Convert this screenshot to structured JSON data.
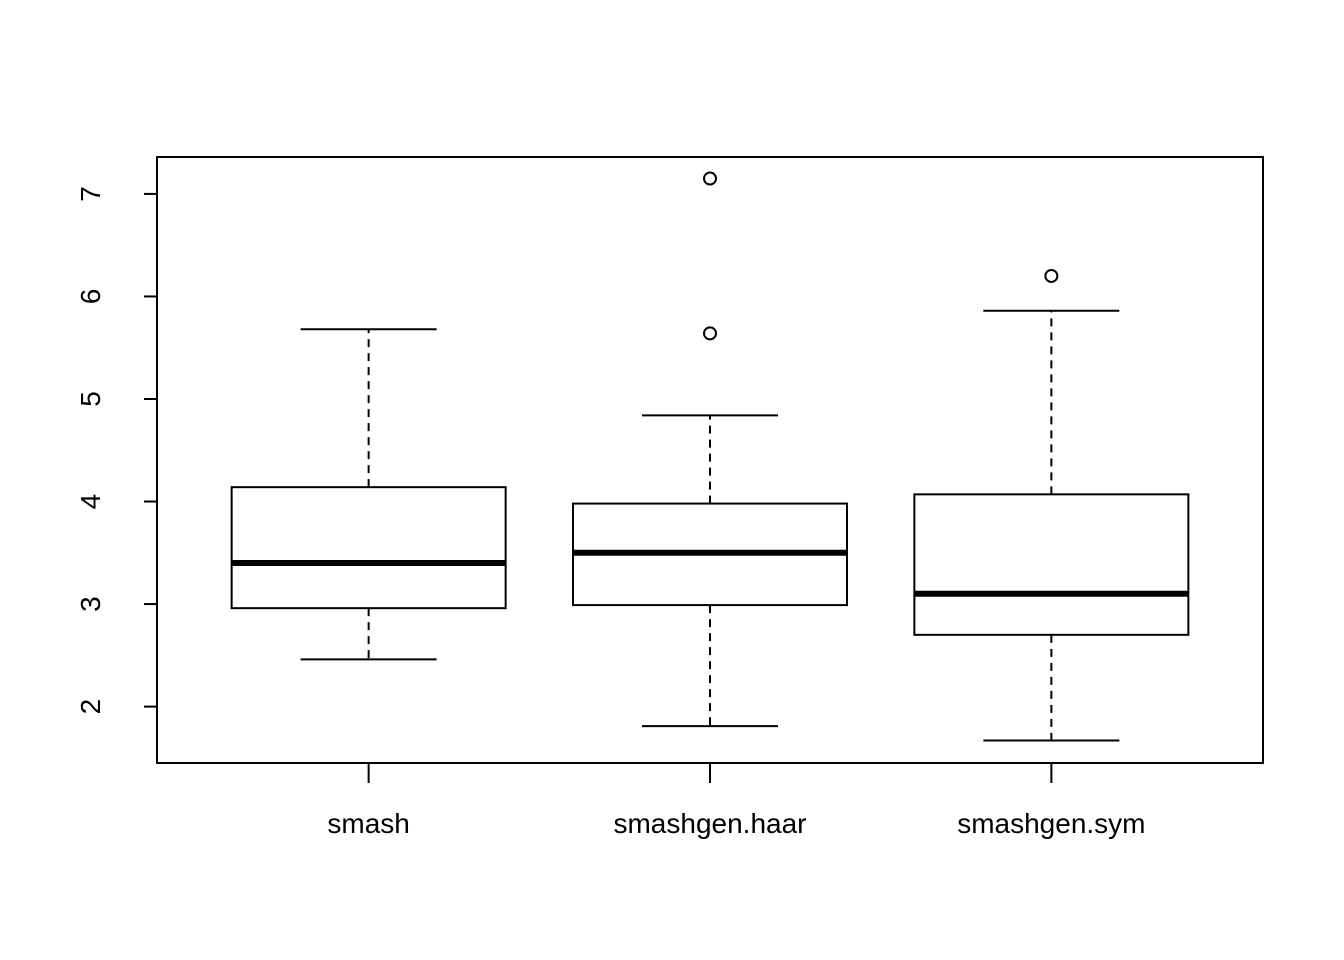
{
  "chart_data": {
    "type": "box",
    "categories": [
      "smash",
      "smashgen.haar",
      "smashgen.sym"
    ],
    "boxes": [
      {
        "whislo": 2.46,
        "q1": 2.96,
        "med": 3.4,
        "q3": 4.14,
        "whishi": 5.68,
        "outliers": []
      },
      {
        "whislo": 1.81,
        "q1": 2.99,
        "med": 3.5,
        "q3": 3.98,
        "whishi": 4.84,
        "outliers": [
          5.64,
          7.15
        ]
      },
      {
        "whislo": 1.67,
        "q1": 2.7,
        "med": 3.1,
        "q3": 4.07,
        "whishi": 5.86,
        "outliers": [
          6.2
        ]
      }
    ],
    "color": "#000000",
    "ylim": [
      1.45,
      7.36
    ],
    "yticks": [
      2,
      3,
      4,
      5,
      6,
      7
    ]
  }
}
